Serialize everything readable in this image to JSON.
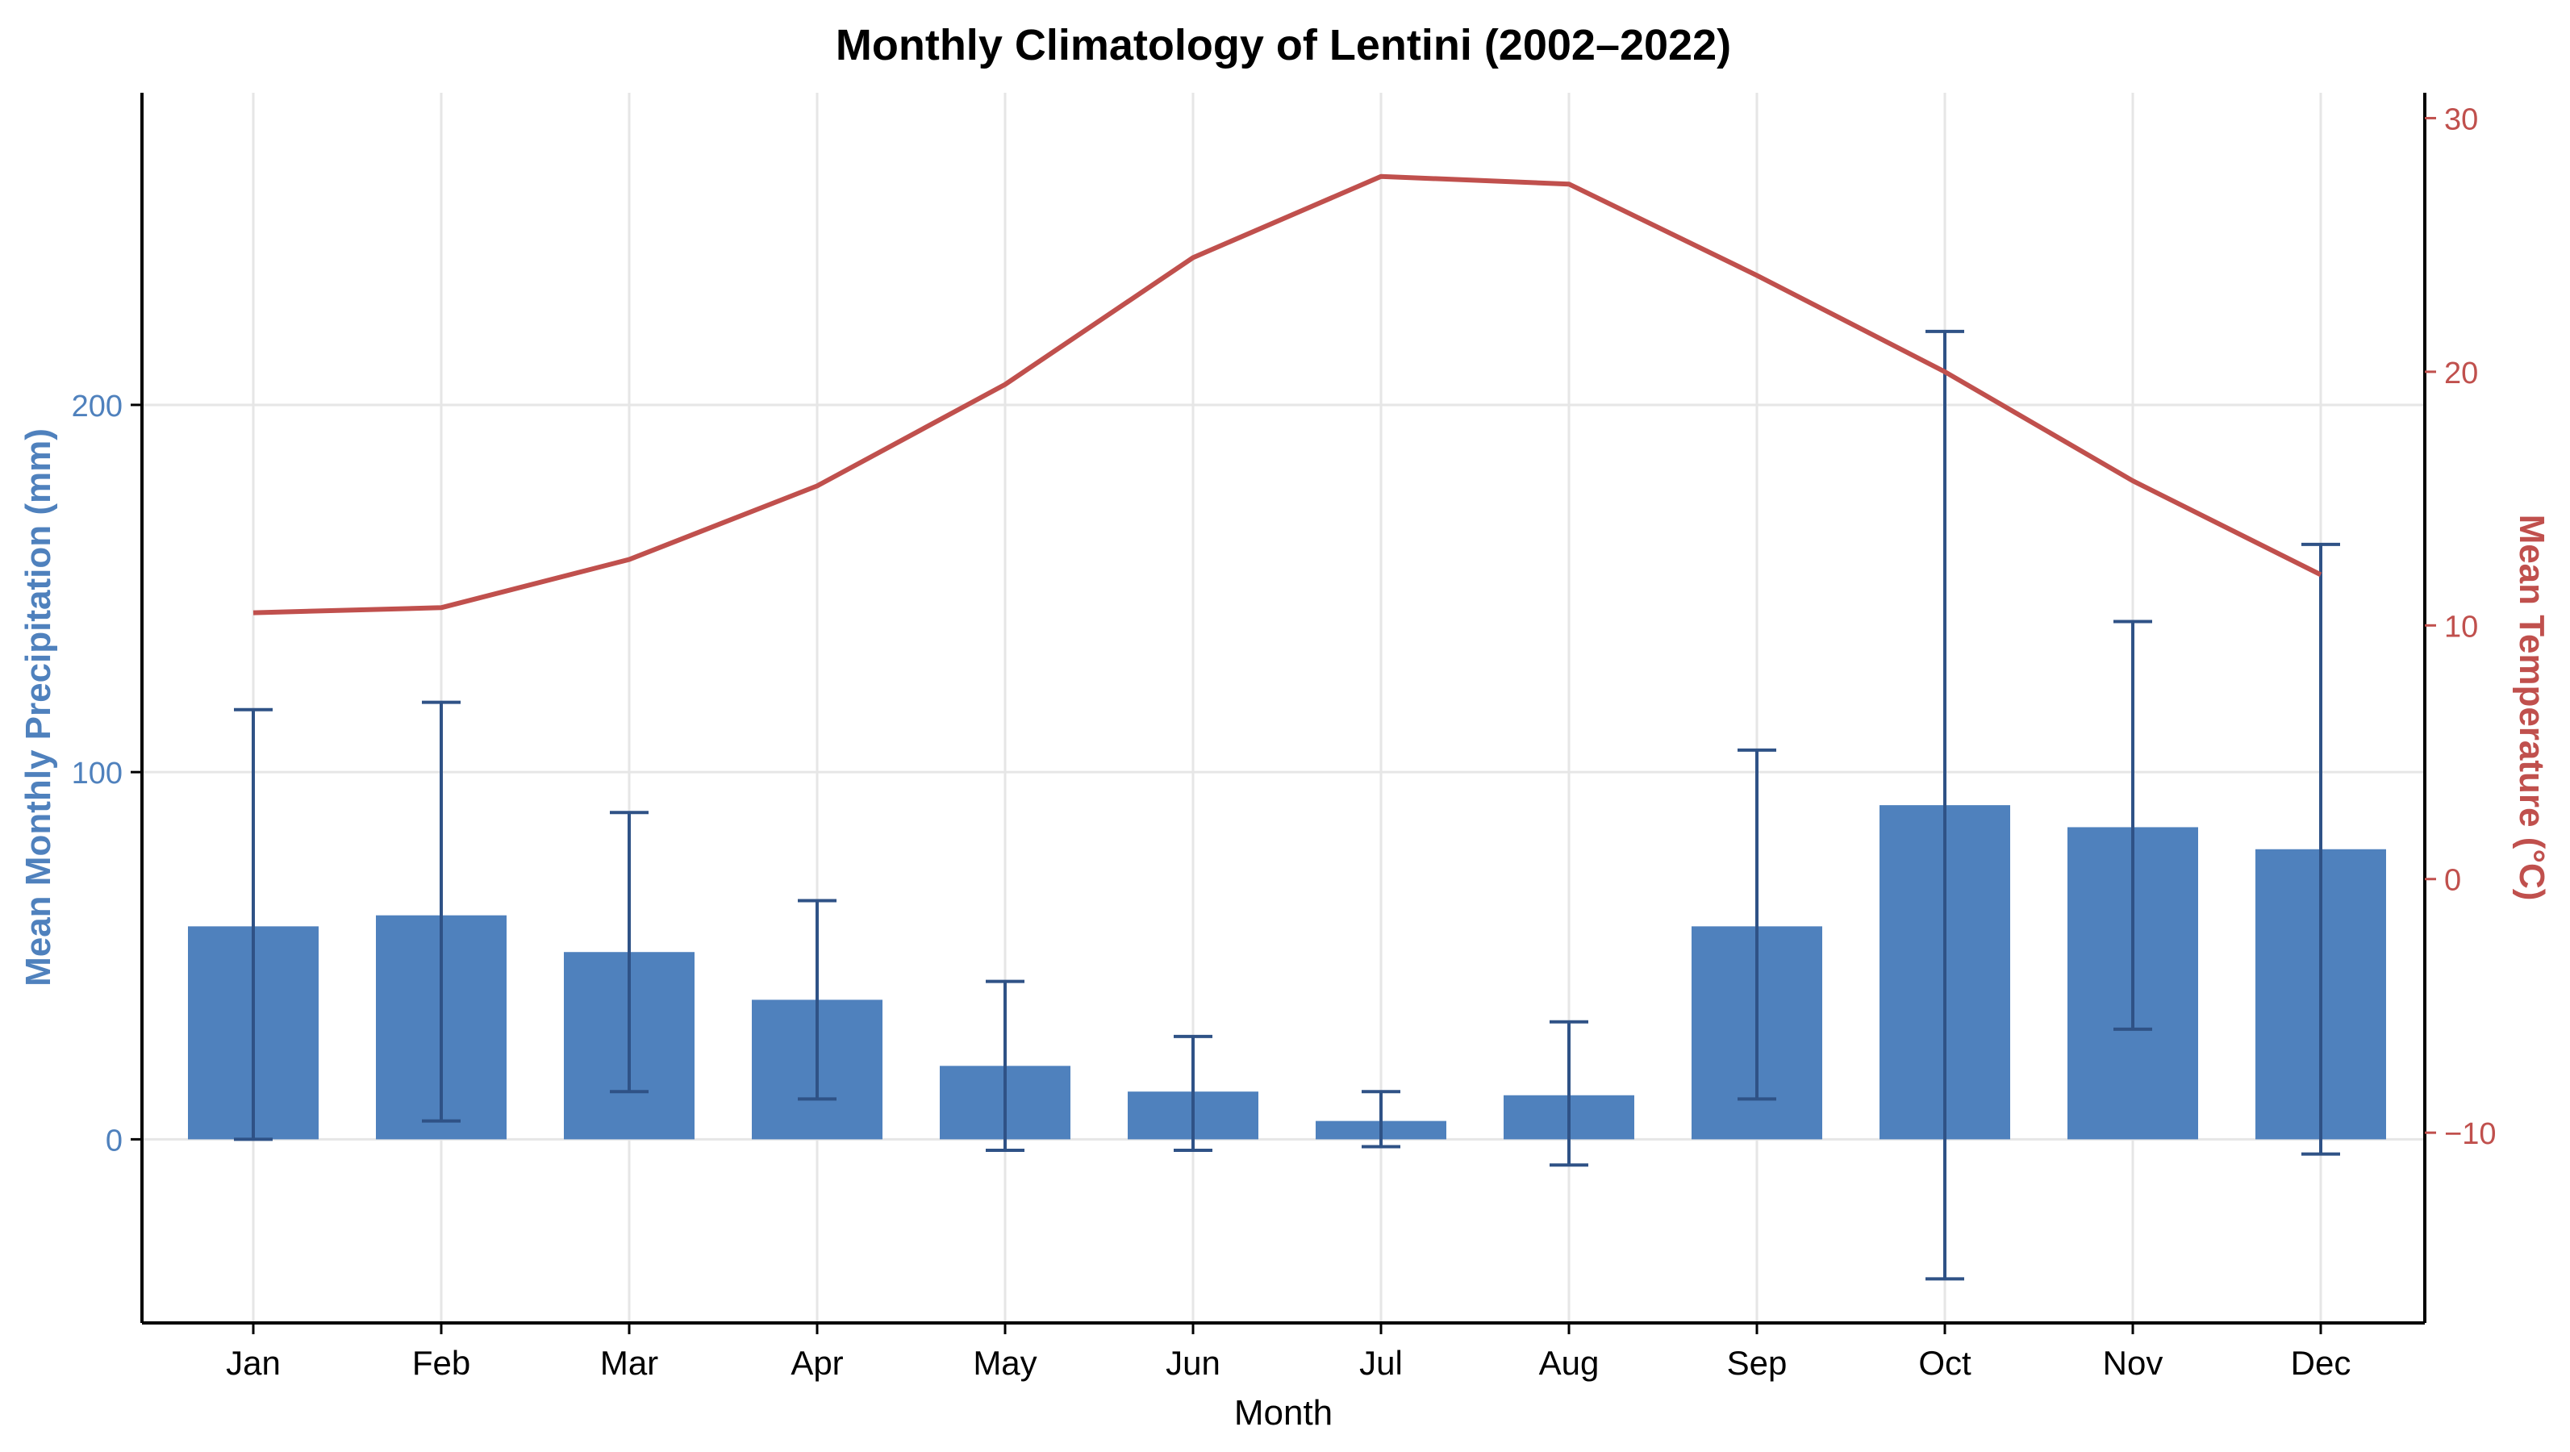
{
  "chart_data": {
    "type": "bar+line",
    "title": "Monthly Climatology of Lentini (2002–2022)",
    "xlabel": "Month",
    "ylabel_left": "Mean Monthly Precipitation (mm)",
    "ylabel_right": "Mean Temperature (°C)",
    "categories": [
      "Jan",
      "Feb",
      "Mar",
      "Apr",
      "May",
      "Jun",
      "Jul",
      "Aug",
      "Sep",
      "Oct",
      "Nov",
      "Dec"
    ],
    "y_left": {
      "lim": [
        -50,
        285
      ],
      "ticks": [
        0,
        100,
        200
      ]
    },
    "y_right": {
      "lim": [
        -17.5,
        31
      ],
      "ticks": [
        -10,
        0,
        10,
        20,
        30
      ]
    },
    "grid": true,
    "series": [
      {
        "kind": "bar",
        "axis": "left",
        "color": "#4f81bd",
        "values": [
          58,
          61,
          51,
          38,
          20,
          13,
          5,
          12,
          58,
          91,
          85,
          79
        ],
        "error_low": [
          0,
          5,
          13,
          11,
          -3,
          -3,
          -2,
          -7,
          11,
          -38,
          30,
          -4
        ],
        "error_high": [
          117,
          119,
          89,
          65,
          43,
          28,
          13,
          32,
          106,
          220,
          141,
          162
        ],
        "error_color": "#2f5286"
      },
      {
        "kind": "line",
        "axis": "right",
        "color": "#c0504d",
        "values": [
          10.5,
          10.7,
          12.6,
          15.5,
          19.5,
          24.5,
          27.7,
          27.4,
          23.8,
          20.0,
          15.7,
          12.0
        ]
      }
    ]
  }
}
